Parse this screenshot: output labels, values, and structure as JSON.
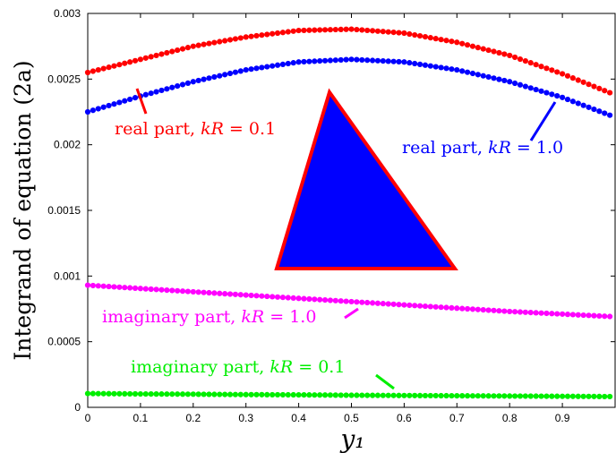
{
  "chart_data": {
    "type": "scatter",
    "title": "",
    "xlabel": "y₁",
    "ylabel": "Integrand of equation (2a)",
    "xlim": [
      0,
      1
    ],
    "ylim": [
      0,
      0.003
    ],
    "grid": false,
    "x_ticks": [
      "0",
      "0.1",
      "0.2",
      "0.3",
      "0.4",
      "0.5",
      "0.6",
      "0.7",
      "0.8",
      "0.9"
    ],
    "x_tick_values": [
      0,
      0.1,
      0.2,
      0.3,
      0.4,
      0.5,
      0.6,
      0.7,
      0.8,
      0.9
    ],
    "y_ticks": [
      "0",
      "0.0005",
      "0.001",
      "0.0015",
      "0.002",
      "0.0025",
      "0.003"
    ],
    "y_tick_values": [
      0,
      0.0005,
      0.001,
      0.0015,
      0.002,
      0.0025,
      0.003
    ],
    "series": [
      {
        "name": "real part, kR = 0.1",
        "color": "#ff0000",
        "x": [
          0,
          0.1,
          0.2,
          0.3,
          0.4,
          0.5,
          0.6,
          0.7,
          0.8,
          0.9,
          1.0
        ],
        "y": [
          0.00255,
          0.00265,
          0.00275,
          0.00282,
          0.00287,
          0.00288,
          0.00285,
          0.00278,
          0.00268,
          0.00254,
          0.00238
        ]
      },
      {
        "name": "real part, kR = 1.0",
        "color": "#0000ff",
        "x": [
          0,
          0.1,
          0.2,
          0.3,
          0.4,
          0.5,
          0.6,
          0.7,
          0.8,
          0.9,
          1.0
        ],
        "y": [
          0.00225,
          0.00237,
          0.00248,
          0.00257,
          0.00263,
          0.00265,
          0.00263,
          0.00257,
          0.00248,
          0.00236,
          0.00221
        ]
      },
      {
        "name": "imaginary part, kR = 1.0",
        "color": "#ff00ff",
        "x": [
          0,
          0.1,
          0.2,
          0.3,
          0.4,
          0.5,
          0.6,
          0.7,
          0.8,
          0.9,
          1.0
        ],
        "y": [
          0.00093,
          0.000905,
          0.00088,
          0.000855,
          0.00083,
          0.000805,
          0.00078,
          0.000755,
          0.00073,
          0.00071,
          0.00069
        ]
      },
      {
        "name": "imaginary part, kR = 0.1",
        "color": "#00ee00",
        "x": [
          0,
          0.1,
          0.2,
          0.3,
          0.4,
          0.5,
          0.6,
          0.7,
          0.8,
          0.9,
          1.0
        ],
        "y": [
          0.000105,
          0.000102,
          0.0001,
          9.7e-05,
          9.5e-05,
          9.2e-05,
          9e-05,
          8.8e-05,
          8.6e-05,
          8.4e-05,
          8.2e-05
        ]
      }
    ],
    "annotations": [
      {
        "text": "real part, kR = 0.1",
        "color": "#ff0000"
      },
      {
        "text": "real part, kR = 1.0",
        "color": "#0000ff"
      },
      {
        "text": "imaginary part, kR = 1.0",
        "color": "#ff00ff"
      },
      {
        "text": "imaginary part, kR = 0.1",
        "color": "#00ee00"
      }
    ],
    "inset_triangle": {
      "fill": "#0000ff",
      "stroke": "#ff0000"
    }
  }
}
